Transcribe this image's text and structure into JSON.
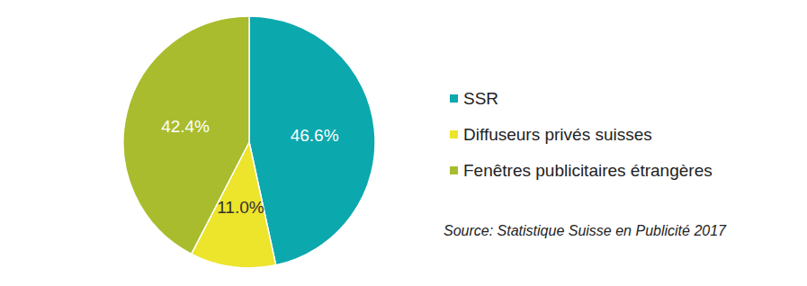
{
  "chart_data": {
    "type": "pie",
    "categories": [
      "SSR",
      "Diffuseurs privés suisses",
      "Fenêtres publicitaires étrangères"
    ],
    "values": [
      46.6,
      11.0,
      42.4
    ],
    "value_labels": [
      "46.6%",
      "11.0%",
      "42.4%"
    ],
    "colors": [
      "#0ba8ae",
      "#ede42c",
      "#a9bc2d"
    ],
    "data_labels": true,
    "legend": "right",
    "annotations": [
      "Source: Statistique Suisse en Publicité 2017"
    ]
  }
}
